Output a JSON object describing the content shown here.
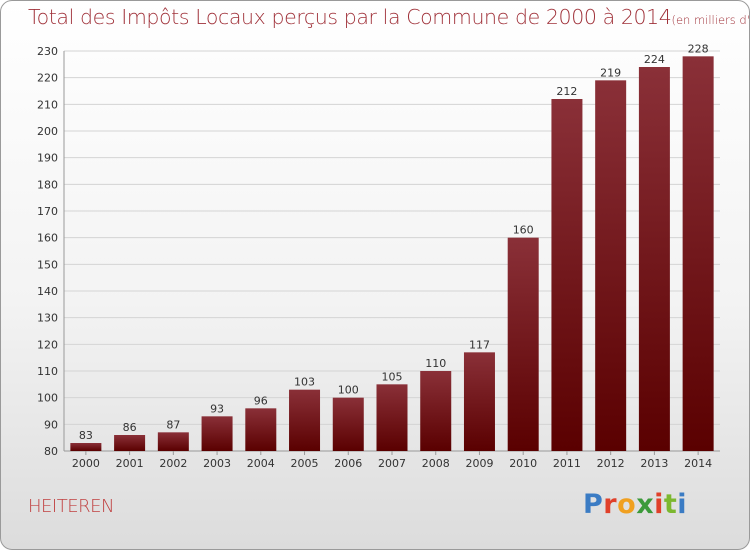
{
  "header": {
    "title": "Total des Impôts Locaux perçus par la Commune de 2000 à 2014",
    "unit": "(en milliers d'€)"
  },
  "footer": {
    "commune": "HEITEREN",
    "logo_text": "Proxiti"
  },
  "colors": {
    "bar_top": "#8a3038",
    "bar_bottom": "#5a0000",
    "title": "#a0323a",
    "logo": [
      "#3b7cc4",
      "#e0402a",
      "#f0a020",
      "#3b9a3a",
      "#e0402a",
      "#7cb82f",
      "#3b7cc4"
    ]
  },
  "chart_data": {
    "type": "bar",
    "title": "Total des Impôts Locaux perçus par la Commune de 2000 à 2014",
    "xlabel": "",
    "ylabel": "",
    "categories": [
      "2000",
      "2001",
      "2002",
      "2003",
      "2004",
      "2005",
      "2006",
      "2007",
      "2008",
      "2009",
      "2010",
      "2011",
      "2012",
      "2013",
      "2014"
    ],
    "values": [
      83,
      86,
      87,
      93,
      96,
      103,
      100,
      105,
      110,
      117,
      160,
      212,
      219,
      224,
      228
    ],
    "ylim": [
      80,
      230
    ],
    "yticks": [
      80,
      90,
      100,
      110,
      120,
      130,
      140,
      150,
      160,
      170,
      180,
      190,
      200,
      210,
      220,
      230
    ],
    "grid": true,
    "data_labels": true
  }
}
